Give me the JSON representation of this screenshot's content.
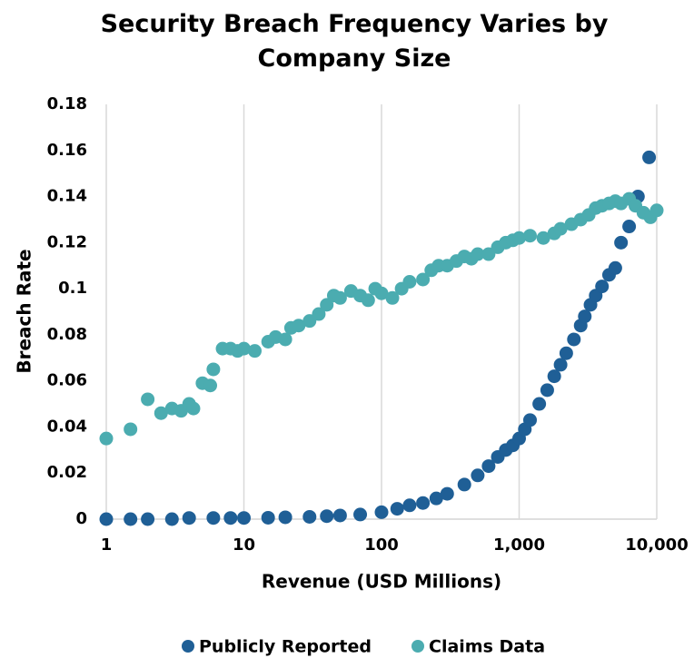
{
  "chart_data": {
    "type": "scatter",
    "title": "Security Breach Frequency Varies by Company Size",
    "x_label": "Revenue (USD Millions)",
    "y_label": "Breach Rate",
    "xscale": "log",
    "xlim": [
      1,
      10000
    ],
    "xticks": [
      1,
      10,
      100,
      {
        "value": 1000,
        "label": "1,000"
      },
      {
        "value": 10000,
        "label": "10,000"
      }
    ],
    "ylim": [
      0,
      0.18
    ],
    "yticks": [
      0,
      0.02,
      0.04,
      0.06,
      0.08,
      0.1,
      0.12,
      0.14,
      0.16,
      0.18
    ],
    "grid": "x",
    "legend": "bottom",
    "series": [
      {
        "name": "Publicly Reported",
        "color": "#1f5f96",
        "x": [
          1,
          1.5,
          2,
          3,
          4,
          6,
          8,
          10,
          15,
          20,
          30,
          40,
          50,
          70,
          100,
          130,
          160,
          200,
          250,
          300,
          400,
          500,
          600,
          700,
          800,
          900,
          1000,
          1100,
          1200,
          1400,
          1600,
          1800,
          2000,
          2200,
          2500,
          2800,
          3000,
          3300,
          3600,
          4000,
          4500,
          5000,
          5500,
          6300,
          7300,
          8800
        ],
        "values": [
          0,
          0,
          0,
          0,
          0.0005,
          0.0005,
          0.0005,
          0.0005,
          0.0006,
          0.0008,
          0.001,
          0.0013,
          0.0016,
          0.002,
          0.003,
          0.0045,
          0.006,
          0.007,
          0.009,
          0.011,
          0.015,
          0.019,
          0.023,
          0.027,
          0.03,
          0.032,
          0.035,
          0.039,
          0.043,
          0.05,
          0.056,
          0.062,
          0.067,
          0.072,
          0.078,
          0.084,
          0.088,
          0.093,
          0.097,
          0.101,
          0.106,
          0.109,
          0.12,
          0.127,
          0.14,
          0.157
        ]
      },
      {
        "name": "Claims Data",
        "color": "#4bacb0",
        "x": [
          1,
          1.5,
          2,
          2.5,
          3,
          3.5,
          4,
          4.3,
          5,
          5.7,
          6,
          7,
          8,
          9,
          10,
          12,
          15,
          17,
          20,
          22,
          25,
          30,
          35,
          40,
          45,
          50,
          60,
          70,
          80,
          90,
          100,
          120,
          140,
          160,
          200,
          230,
          260,
          300,
          350,
          400,
          450,
          500,
          600,
          700,
          800,
          900,
          1000,
          1200,
          1500,
          1800,
          2000,
          2400,
          2800,
          3200,
          3600,
          4000,
          4500,
          5000,
          5500,
          6300,
          7000,
          8000,
          9000,
          10000
        ],
        "values": [
          0.035,
          0.039,
          0.052,
          0.046,
          0.048,
          0.047,
          0.05,
          0.048,
          0.059,
          0.058,
          0.065,
          0.074,
          0.074,
          0.073,
          0.074,
          0.073,
          0.077,
          0.079,
          0.078,
          0.083,
          0.084,
          0.086,
          0.089,
          0.093,
          0.097,
          0.096,
          0.099,
          0.097,
          0.095,
          0.1,
          0.098,
          0.096,
          0.1,
          0.103,
          0.104,
          0.108,
          0.11,
          0.11,
          0.112,
          0.114,
          0.113,
          0.115,
          0.115,
          0.118,
          0.12,
          0.121,
          0.122,
          0.123,
          0.122,
          0.124,
          0.126,
          0.128,
          0.13,
          0.132,
          0.135,
          0.136,
          0.137,
          0.138,
          0.137,
          0.139,
          0.136,
          0.133,
          0.131,
          0.134
        ]
      }
    ]
  }
}
